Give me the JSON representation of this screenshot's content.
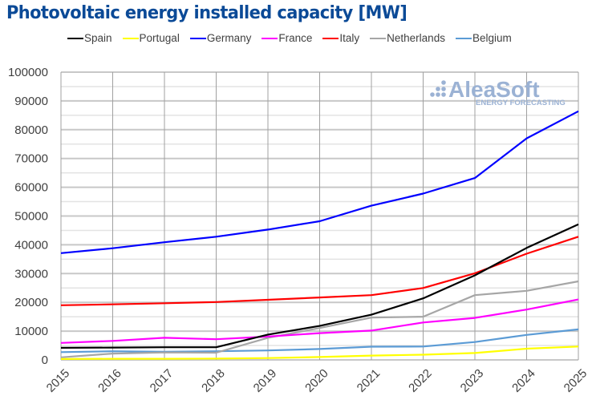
{
  "chart_data": {
    "type": "line",
    "title": "Photovoltaic energy installed capacity [MW]",
    "xlabel": "",
    "ylabel": "",
    "x": [
      "2015",
      "2016",
      "2017",
      "2018",
      "2019",
      "2020",
      "2021",
      "2022",
      "2023",
      "2024",
      "2025"
    ],
    "ylim": [
      0,
      100000
    ],
    "yticks": [
      "0",
      "10000",
      "20000",
      "30000",
      "40000",
      "50000",
      "60000",
      "70000",
      "80000",
      "90000",
      "100000"
    ],
    "ytick_values": [
      0,
      10000,
      20000,
      30000,
      40000,
      50000,
      60000,
      70000,
      80000,
      90000,
      100000
    ],
    "minor_grid_step": 5000,
    "grid": true,
    "legend_position": "top",
    "series": [
      {
        "name": "Spain",
        "color": "#000000",
        "values": [
          4200,
          4300,
          4400,
          4400,
          8800,
          11800,
          15700,
          21400,
          29400,
          38900,
          47100
        ]
      },
      {
        "name": "Portugal",
        "color": "#ffff00",
        "values": [
          300,
          400,
          400,
          450,
          650,
          1000,
          1500,
          1800,
          2400,
          3900,
          4650
        ]
      },
      {
        "name": "Germany",
        "color": "#0000ff",
        "values": [
          37100,
          38800,
          40900,
          42800,
          45300,
          48200,
          53600,
          57800,
          63200,
          77000,
          86400
        ]
      },
      {
        "name": "France",
        "color": "#ff00ff",
        "values": [
          5900,
          6600,
          7700,
          7200,
          8100,
          9300,
          10200,
          13000,
          14600,
          17500,
          21000
        ]
      },
      {
        "name": "Italy",
        "color": "#ff0000",
        "values": [
          19000,
          19300,
          19700,
          20100,
          20900,
          21700,
          22500,
          25000,
          30100,
          36900,
          42800
        ]
      },
      {
        "name": "Netherlands",
        "color": "#a6a6a6",
        "values": [
          900,
          2200,
          2600,
          2500,
          7700,
          11100,
          14700,
          15000,
          22500,
          24000,
          27300
        ]
      },
      {
        "name": "Belgium",
        "color": "#5b9bd5",
        "values": [
          2700,
          3000,
          2800,
          3000,
          3300,
          3800,
          4600,
          4650,
          6200,
          8700,
          10600
        ]
      }
    ]
  },
  "watermark": {
    "brand": "AleaSoft",
    "tagline": "ENERGY FORECASTING"
  }
}
